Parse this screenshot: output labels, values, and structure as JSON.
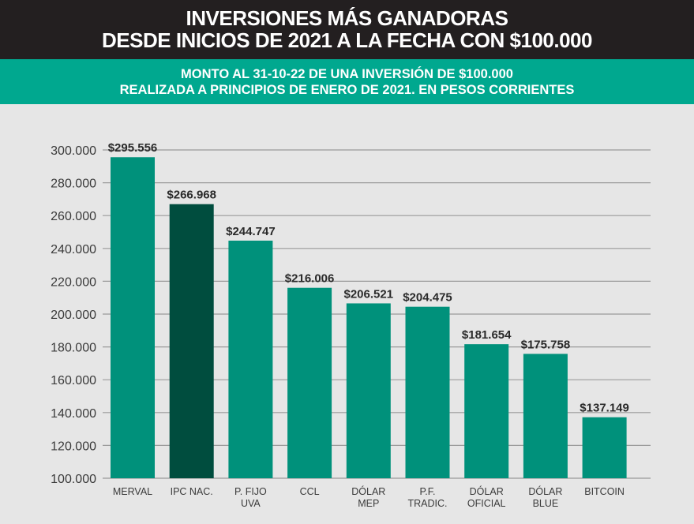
{
  "title": {
    "line1": "INVERSIONES MÁS GANADORAS",
    "line2": "DESDE INICIOS DE 2021 A LA FECHA CON $100.000"
  },
  "subtitle": {
    "line1": "MONTO AL 31-10-22 DE UNA INVERSIÓN DE $100.000",
    "line2": "REALIZADA A PRINCIPIOS DE ENERO DE 2021. EN PESOS CORRIENTES"
  },
  "colors": {
    "bar": "#00917b",
    "highlight": "#004d3e",
    "grid": "#9a9a9a"
  },
  "chart_data": {
    "type": "bar",
    "title": "INVERSIONES MÁS GANADORAS DESDE INICIOS DE 2021 A LA FECHA CON $100.000",
    "subtitle": "MONTO AL 31-10-22 DE UNA INVERSIÓN DE $100.000 REALIZADA A PRINCIPIOS DE ENERO DE 2021. EN PESOS CORRIENTES",
    "categories": [
      [
        "MERVAL"
      ],
      [
        "IPC NAC."
      ],
      [
        "P. FIJO",
        "UVA"
      ],
      [
        "CCL"
      ],
      [
        "DÓLAR",
        "MEP"
      ],
      [
        "P.F.",
        "TRADIC."
      ],
      [
        "DÓLAR",
        "OFICIAL"
      ],
      [
        "DÓLAR",
        "BLUE"
      ],
      [
        "BITCOIN"
      ]
    ],
    "values": [
      295556,
      266968,
      244747,
      216006,
      206521,
      204475,
      181654,
      175758,
      137149
    ],
    "value_labels": [
      "$295.556",
      "$266.968",
      "$244.747",
      "$216.006",
      "$206.521",
      "$204.475",
      "$181.654",
      "$175.758",
      "$137.149"
    ],
    "highlight_index": 1,
    "ylim": [
      100000,
      300000
    ],
    "yticks": [
      100000,
      120000,
      140000,
      160000,
      180000,
      200000,
      220000,
      240000,
      260000,
      280000,
      300000
    ],
    "ytick_labels": [
      "100.000",
      "120.000",
      "140.000",
      "160.000",
      "180.000",
      "200.000",
      "220.000",
      "240.000",
      "260.000",
      "280.000",
      "300.000"
    ],
    "grid": true,
    "xlabel": "",
    "ylabel": ""
  }
}
